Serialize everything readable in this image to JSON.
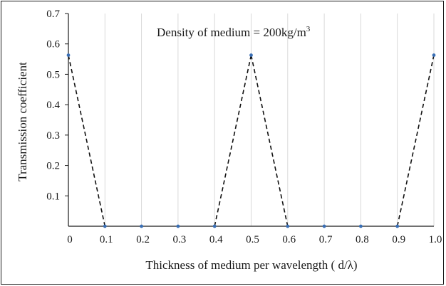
{
  "chart_data": {
    "type": "line",
    "xlabel": "Thickness of medium per wavelength ( d/λ)",
    "ylabel": "Transmission coefficient",
    "annotation": {
      "text": "Density of medium = 200kg/m",
      "superscript": "3"
    },
    "xlim": [
      0,
      1.0
    ],
    "ylim": [
      0,
      0.7
    ],
    "x_ticks": [
      "0",
      "0.1",
      "0.2",
      "0.3",
      "0.4",
      "0.5",
      "0.6",
      "0.7",
      "0.8",
      "0.9",
      "1.0"
    ],
    "y_ticks": [
      "0.1",
      "0.2",
      "0.3",
      "0.4",
      "0.5",
      "0.6",
      "0.7"
    ],
    "grid": "vertical",
    "series": [
      {
        "x": [
          0,
          0.1,
          0.2,
          0.3,
          0.4,
          0.5,
          0.6,
          0.7,
          0.8,
          0.9,
          1.0
        ],
        "y": [
          0.563,
          0,
          0,
          0,
          0,
          0.563,
          0,
          0,
          0,
          0,
          0.563
        ],
        "line_style": "dashed",
        "line_segments": [
          [
            0,
            1
          ],
          [
            4,
            5
          ],
          [
            5,
            6
          ],
          [
            9,
            10
          ]
        ],
        "marker_color": "#3a6fb5",
        "line_color": "#111111"
      }
    ]
  }
}
